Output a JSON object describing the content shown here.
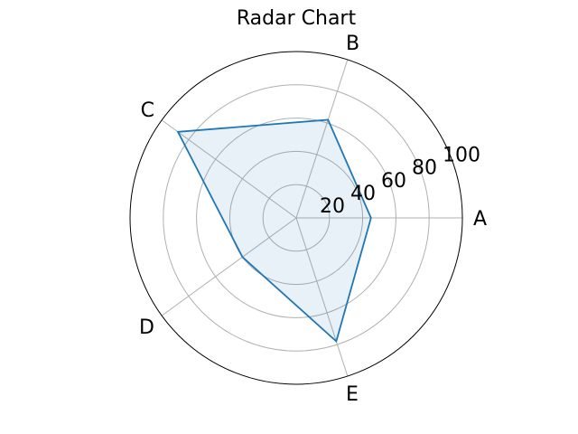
{
  "chart_data": {
    "type": "radar",
    "title": "Radar Chart",
    "categories": [
      "A",
      "B",
      "C",
      "D",
      "E"
    ],
    "values": [
      45,
      62,
      88,
      40,
      78
    ],
    "rlim": [
      0,
      100
    ],
    "r_ticks": [
      20,
      40,
      60,
      80,
      100
    ],
    "grid": true,
    "colors": {
      "line": "#1f77b4",
      "fill": "#1f77b4",
      "fill_opacity": 0.1
    }
  }
}
